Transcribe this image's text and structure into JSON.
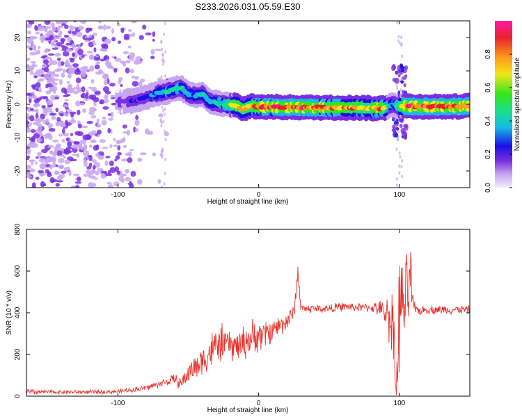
{
  "title": "S233.2026.031.05.59.E30",
  "colors": {
    "trace": "#e8322c",
    "axis": "#000000",
    "colormap": [
      "#f4ecfb",
      "#c7a6f0",
      "#7a2fe0",
      "#1a10e6",
      "#16b8e8",
      "#19e08a",
      "#33e61a",
      "#f2e61a",
      "#ff9a1a",
      "#e8222a",
      "#ff1aa8"
    ]
  },
  "chart_data": [
    {
      "type": "heatmap",
      "title": "S233.2026.031.05.59.E30",
      "xlabel": "Height of straight line (km)",
      "ylabel": "Frequency (Hz)",
      "xlim": [
        -165,
        150
      ],
      "ylim": [
        -25,
        25
      ],
      "xticks": [
        -100,
        0,
        100
      ],
      "yticks": [
        -20,
        -10,
        0,
        10,
        20
      ],
      "colorbar": {
        "label": "Normalized spectral amplitude",
        "range": [
          0,
          1
        ],
        "ticks": [
          "0.0",
          "0.2",
          "0.4",
          "0.6",
          "0.8"
        ]
      },
      "ridge": {
        "x": [
          -100,
          -90,
          -80,
          -70,
          -65,
          -60,
          -55,
          -50,
          -45,
          -40,
          -35,
          -30,
          -25,
          -20,
          -15,
          -12,
          -8,
          -5,
          0,
          10,
          20,
          30,
          40,
          50,
          60,
          70,
          80,
          85,
          90,
          95,
          100,
          105,
          110,
          120,
          130,
          140,
          150
        ],
        "y": [
          0.8,
          1.0,
          2.0,
          3.5,
          3.8,
          4.5,
          5.0,
          3.0,
          2.5,
          3.0,
          0.8,
          0.5,
          0,
          -0.2,
          -0.5,
          -1.5,
          -1.0,
          -0.5,
          -0.8,
          -0.8,
          -0.9,
          -0.9,
          -1.0,
          -1.0,
          -1.0,
          -1.0,
          -1.2,
          -1.3,
          -1.0,
          0,
          -0.7,
          -0.5,
          -0.7,
          -0.7,
          -0.7,
          -0.7,
          -0.5
        ],
        "amplitude": [
          0.2,
          0.25,
          0.3,
          0.4,
          0.45,
          0.5,
          0.45,
          0.4,
          0.4,
          0.45,
          0.4,
          0.45,
          0.5,
          0.6,
          0.75,
          0.8,
          0.7,
          0.75,
          0.85,
          0.9,
          0.85,
          0.9,
          0.85,
          0.85,
          0.8,
          0.8,
          0.7,
          0.9,
          0.7,
          0.3,
          0.6,
          0.85,
          0.9,
          0.9,
          0.9,
          0.9,
          0.85
        ]
      },
      "noise_region": {
        "x_range": [
          -165,
          -60
        ],
        "note": "scattered low-amplitude speckle (0.0 - 0.2)"
      },
      "disturbance": {
        "x": 100,
        "freq_spread": [
          -10,
          12
        ]
      }
    },
    {
      "type": "line",
      "xlabel": "Height of straight line (km)",
      "ylabel": "SNR (10 * v/v)",
      "xlim": [
        -165,
        150
      ],
      "ylim": [
        0,
        800
      ],
      "xticks": [
        -100,
        0,
        100
      ],
      "yticks": [
        0,
        200,
        400,
        600,
        800
      ],
      "series": [
        {
          "name": "SNR",
          "x": [
            -165,
            -150,
            -130,
            -110,
            -100,
            -90,
            -80,
            -70,
            -60,
            -55,
            -50,
            -45,
            -40,
            -35,
            -30,
            -25,
            -20,
            -15,
            -10,
            -5,
            0,
            5,
            10,
            15,
            20,
            25,
            28,
            30,
            32,
            35,
            40,
            45,
            50,
            60,
            70,
            80,
            85,
            90,
            95,
            98,
            100,
            102,
            105,
            108,
            110,
            115,
            120,
            130,
            140,
            150
          ],
          "y": [
            20,
            20,
            20,
            20,
            22,
            30,
            40,
            60,
            80,
            60,
            110,
            140,
            170,
            210,
            240,
            260,
            240,
            240,
            260,
            280,
            290,
            300,
            320,
            340,
            360,
            400,
            600,
            420,
            420,
            420,
            420,
            420,
            420,
            430,
            425,
            425,
            420,
            400,
            370,
            100,
            440,
            420,
            460,
            560,
            420,
            410,
            415,
            415,
            415,
            415
          ],
          "spread": [
            20,
            12,
            12,
            12,
            12,
            14,
            18,
            22,
            30,
            40,
            60,
            80,
            90,
            110,
            110,
            100,
            90,
            90,
            100,
            100,
            100,
            80,
            70,
            60,
            60,
            40,
            60,
            30,
            25,
            25,
            25,
            25,
            25,
            25,
            25,
            25,
            40,
            80,
            200,
            380,
            360,
            300,
            250,
            240,
            40,
            25,
            25,
            25,
            25,
            25
          ]
        }
      ]
    }
  ]
}
